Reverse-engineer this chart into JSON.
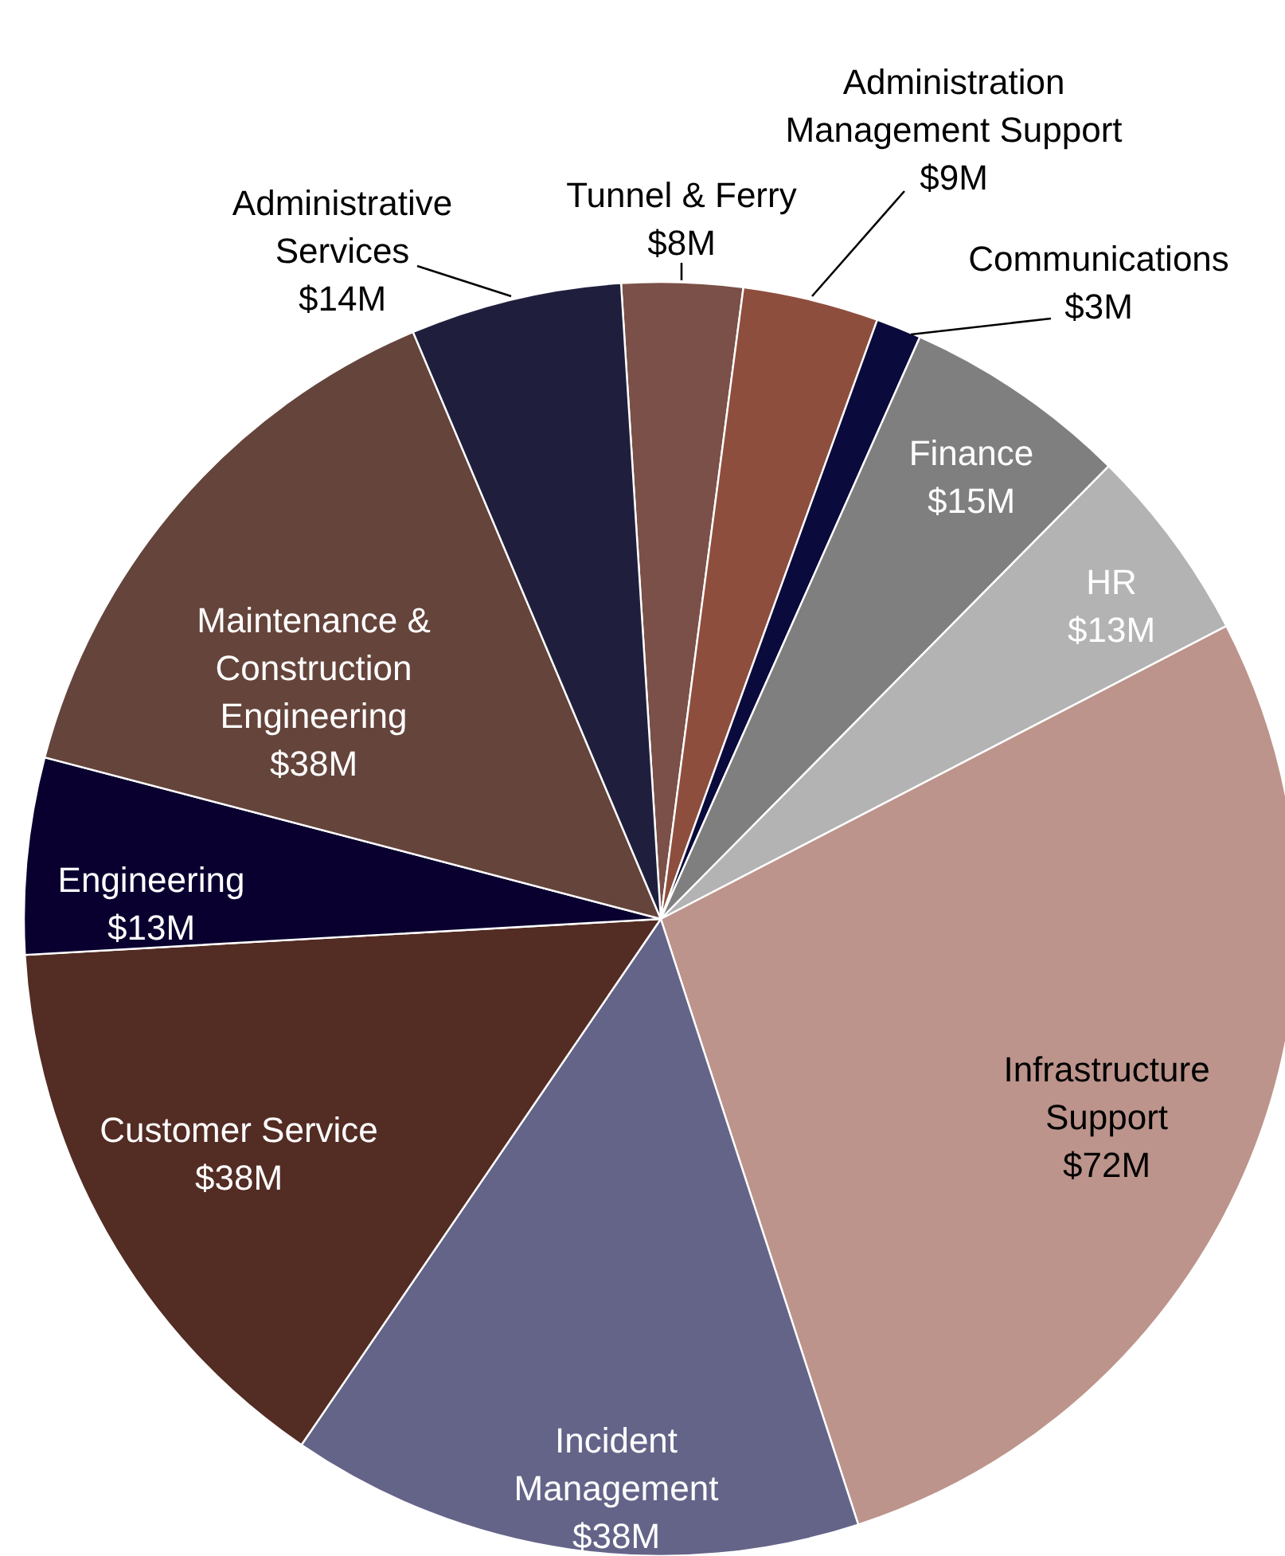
{
  "chart_data": {
    "type": "pie",
    "categories": [
      "Tunnel & Ferry",
      "Administration Management Support",
      "Communications",
      "Finance",
      "HR",
      "Infrastructure Support",
      "Incident Management",
      "Customer Service",
      "Engineering",
      "Maintenance & Construction Engineering",
      "Administrative Services"
    ],
    "values": [
      8,
      9,
      3,
      15,
      13,
      72,
      38,
      38,
      13,
      38,
      14
    ],
    "value_labels": [
      "$8M",
      "$9M",
      "$3M",
      "$15M",
      "$13M",
      "$72M",
      "$38M",
      "$38M",
      "$13M",
      "$38M",
      "$14M"
    ],
    "colors": [
      "#7b5048",
      "#8e4e3e",
      "#0b0a3c",
      "#7f7f7f",
      "#b3b3b3",
      "#bc948b",
      "#646489",
      "#532c24",
      "#0a0030",
      "#65443b",
      "#1f1f3d"
    ]
  }
}
